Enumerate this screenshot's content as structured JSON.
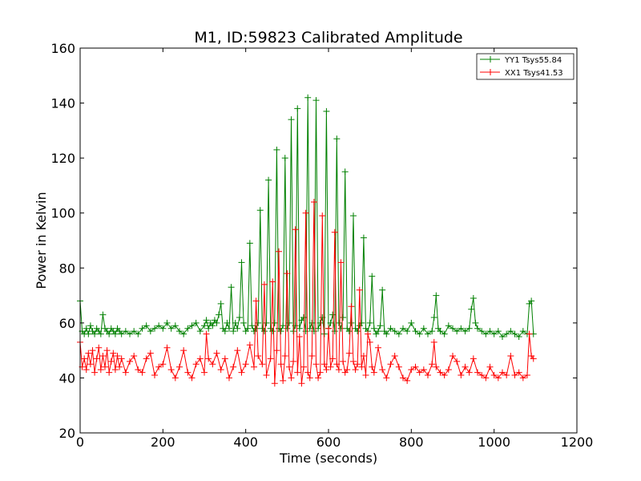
{
  "chart_data": {
    "type": "line",
    "title": "M1, ID:59823 Calibrated Amplitude",
    "xlabel": "Time (seconds)",
    "ylabel": "Power in Kelvin",
    "xlim": [
      0,
      1200
    ],
    "ylim": [
      20,
      160
    ],
    "xticks": [
      0,
      200,
      400,
      600,
      800,
      1000,
      1200
    ],
    "yticks": [
      20,
      40,
      60,
      80,
      100,
      120,
      140,
      160
    ],
    "grid": false,
    "legend_position": "top-right",
    "marker": "+",
    "series": [
      {
        "name": "YY1 Tsys55.84",
        "color": "#008000",
        "points": [
          [
            0,
            68
          ],
          [
            5,
            57
          ],
          [
            10,
            56
          ],
          [
            15,
            58
          ],
          [
            20,
            56
          ],
          [
            25,
            59
          ],
          [
            30,
            57
          ],
          [
            35,
            56
          ],
          [
            40,
            58
          ],
          [
            45,
            57
          ],
          [
            50,
            56
          ],
          [
            55,
            63
          ],
          [
            60,
            58
          ],
          [
            65,
            57
          ],
          [
            70,
            56
          ],
          [
            75,
            58
          ],
          [
            80,
            57
          ],
          [
            85,
            56
          ],
          [
            90,
            58
          ],
          [
            95,
            57
          ],
          [
            100,
            56
          ],
          [
            110,
            57
          ],
          [
            120,
            56
          ],
          [
            130,
            57
          ],
          [
            140,
            56
          ],
          [
            150,
            58
          ],
          [
            160,
            59
          ],
          [
            170,
            57
          ],
          [
            180,
            58
          ],
          [
            190,
            59
          ],
          [
            200,
            58
          ],
          [
            210,
            60
          ],
          [
            220,
            58
          ],
          [
            230,
            59
          ],
          [
            240,
            57
          ],
          [
            250,
            56
          ],
          [
            260,
            58
          ],
          [
            270,
            59
          ],
          [
            280,
            60
          ],
          [
            290,
            57
          ],
          [
            300,
            59
          ],
          [
            305,
            61
          ],
          [
            310,
            58
          ],
          [
            315,
            60
          ],
          [
            320,
            59
          ],
          [
            325,
            61
          ],
          [
            330,
            60
          ],
          [
            335,
            63
          ],
          [
            340,
            67
          ],
          [
            345,
            58
          ],
          [
            350,
            57
          ],
          [
            355,
            60
          ],
          [
            360,
            58
          ],
          [
            365,
            73
          ],
          [
            370,
            57
          ],
          [
            375,
            60
          ],
          [
            380,
            58
          ],
          [
            385,
            62
          ],
          [
            390,
            82
          ],
          [
            395,
            60
          ],
          [
            400,
            57
          ],
          [
            405,
            58
          ],
          [
            410,
            89
          ],
          [
            415,
            59
          ],
          [
            420,
            57
          ],
          [
            425,
            58
          ],
          [
            430,
            60
          ],
          [
            435,
            101
          ],
          [
            440,
            58
          ],
          [
            445,
            57
          ],
          [
            450,
            60
          ],
          [
            455,
            112
          ],
          [
            460,
            58
          ],
          [
            465,
            57
          ],
          [
            470,
            60
          ],
          [
            475,
            123
          ],
          [
            480,
            58
          ],
          [
            485,
            57
          ],
          [
            490,
            59
          ],
          [
            495,
            120
          ],
          [
            500,
            58
          ],
          [
            505,
            60
          ],
          [
            510,
            134
          ],
          [
            515,
            57
          ],
          [
            520,
            59
          ],
          [
            525,
            138
          ],
          [
            530,
            58
          ],
          [
            535,
            61
          ],
          [
            540,
            62
          ],
          [
            545,
            57
          ],
          [
            550,
            142
          ],
          [
            555,
            58
          ],
          [
            560,
            60
          ],
          [
            565,
            57
          ],
          [
            570,
            141
          ],
          [
            575,
            58
          ],
          [
            580,
            60
          ],
          [
            585,
            62
          ],
          [
            590,
            56
          ],
          [
            595,
            137
          ],
          [
            600,
            58
          ],
          [
            605,
            60
          ],
          [
            610,
            63
          ],
          [
            615,
            57
          ],
          [
            620,
            127
          ],
          [
            625,
            60
          ],
          [
            630,
            58
          ],
          [
            635,
            62
          ],
          [
            640,
            115
          ],
          [
            645,
            58
          ],
          [
            650,
            57
          ],
          [
            655,
            60
          ],
          [
            660,
            99
          ],
          [
            665,
            58
          ],
          [
            670,
            57
          ],
          [
            675,
            59
          ],
          [
            680,
            60
          ],
          [
            685,
            91
          ],
          [
            690,
            58
          ],
          [
            695,
            57
          ],
          [
            700,
            60
          ],
          [
            705,
            77
          ],
          [
            710,
            58
          ],
          [
            715,
            56
          ],
          [
            720,
            57
          ],
          [
            725,
            59
          ],
          [
            730,
            72
          ],
          [
            735,
            57
          ],
          [
            740,
            56
          ],
          [
            750,
            58
          ],
          [
            760,
            57
          ],
          [
            770,
            56
          ],
          [
            780,
            58
          ],
          [
            790,
            57
          ],
          [
            800,
            60
          ],
          [
            810,
            57
          ],
          [
            820,
            56
          ],
          [
            830,
            58
          ],
          [
            840,
            56
          ],
          [
            850,
            57
          ],
          [
            855,
            62
          ],
          [
            860,
            70
          ],
          [
            865,
            58
          ],
          [
            870,
            57
          ],
          [
            880,
            56
          ],
          [
            890,
            59
          ],
          [
            900,
            58
          ],
          [
            910,
            57
          ],
          [
            920,
            58
          ],
          [
            930,
            57
          ],
          [
            940,
            58
          ],
          [
            945,
            65
          ],
          [
            950,
            69
          ],
          [
            955,
            60
          ],
          [
            960,
            58
          ],
          [
            970,
            57
          ],
          [
            980,
            56
          ],
          [
            990,
            57
          ],
          [
            1000,
            56
          ],
          [
            1010,
            57
          ],
          [
            1020,
            55
          ],
          [
            1030,
            56
          ],
          [
            1040,
            57
          ],
          [
            1050,
            56
          ],
          [
            1060,
            55
          ],
          [
            1070,
            57
          ],
          [
            1080,
            56
          ],
          [
            1085,
            67
          ],
          [
            1090,
            68
          ],
          [
            1095,
            56
          ]
        ]
      },
      {
        "name": "XX1 Tsys41.53",
        "color": "#ff0000",
        "points": [
          [
            0,
            53
          ],
          [
            5,
            44
          ],
          [
            10,
            47
          ],
          [
            15,
            43
          ],
          [
            20,
            49
          ],
          [
            25,
            45
          ],
          [
            30,
            50
          ],
          [
            35,
            42
          ],
          [
            40,
            47
          ],
          [
            45,
            51
          ],
          [
            50,
            43
          ],
          [
            55,
            48
          ],
          [
            60,
            44
          ],
          [
            65,
            50
          ],
          [
            70,
            42
          ],
          [
            75,
            46
          ],
          [
            80,
            49
          ],
          [
            85,
            43
          ],
          [
            90,
            48
          ],
          [
            95,
            44
          ],
          [
            100,
            47
          ],
          [
            110,
            42
          ],
          [
            120,
            46
          ],
          [
            130,
            48
          ],
          [
            140,
            43
          ],
          [
            150,
            42
          ],
          [
            160,
            47
          ],
          [
            170,
            49
          ],
          [
            180,
            41
          ],
          [
            190,
            44
          ],
          [
            200,
            45
          ],
          [
            210,
            51
          ],
          [
            220,
            43
          ],
          [
            230,
            40
          ],
          [
            240,
            44
          ],
          [
            250,
            50
          ],
          [
            260,
            42
          ],
          [
            270,
            40
          ],
          [
            280,
            45
          ],
          [
            290,
            47
          ],
          [
            300,
            42
          ],
          [
            305,
            56
          ],
          [
            310,
            47
          ],
          [
            320,
            45
          ],
          [
            330,
            49
          ],
          [
            340,
            43
          ],
          [
            350,
            47
          ],
          [
            360,
            40
          ],
          [
            370,
            44
          ],
          [
            380,
            50
          ],
          [
            390,
            42
          ],
          [
            400,
            45
          ],
          [
            410,
            52
          ],
          [
            420,
            44
          ],
          [
            425,
            68
          ],
          [
            430,
            48
          ],
          [
            440,
            45
          ],
          [
            445,
            74
          ],
          [
            450,
            41
          ],
          [
            460,
            47
          ],
          [
            465,
            75
          ],
          [
            470,
            38
          ],
          [
            475,
            50
          ],
          [
            480,
            86
          ],
          [
            485,
            45
          ],
          [
            490,
            39
          ],
          [
            495,
            48
          ],
          [
            500,
            78
          ],
          [
            505,
            44
          ],
          [
            510,
            40
          ],
          [
            515,
            46
          ],
          [
            520,
            94
          ],
          [
            525,
            42
          ],
          [
            530,
            55
          ],
          [
            535,
            38
          ],
          [
            540,
            44
          ],
          [
            545,
            100
          ],
          [
            550,
            42
          ],
          [
            555,
            40
          ],
          [
            560,
            48
          ],
          [
            565,
            104
          ],
          [
            570,
            45
          ],
          [
            575,
            40
          ],
          [
            580,
            42
          ],
          [
            585,
            99
          ],
          [
            590,
            45
          ],
          [
            595,
            43
          ],
          [
            600,
            58
          ],
          [
            605,
            44
          ],
          [
            610,
            47
          ],
          [
            615,
            93
          ],
          [
            620,
            45
          ],
          [
            625,
            43
          ],
          [
            630,
            82
          ],
          [
            635,
            46
          ],
          [
            640,
            42
          ],
          [
            645,
            43
          ],
          [
            650,
            49
          ],
          [
            655,
            66
          ],
          [
            660,
            46
          ],
          [
            665,
            43
          ],
          [
            670,
            45
          ],
          [
            675,
            72
          ],
          [
            680,
            44
          ],
          [
            685,
            48
          ],
          [
            690,
            41
          ],
          [
            695,
            56
          ],
          [
            700,
            53
          ],
          [
            705,
            44
          ],
          [
            710,
            42
          ],
          [
            720,
            51
          ],
          [
            730,
            43
          ],
          [
            740,
            40
          ],
          [
            750,
            45
          ],
          [
            760,
            48
          ],
          [
            770,
            44
          ],
          [
            780,
            40
          ],
          [
            790,
            39
          ],
          [
            800,
            43
          ],
          [
            810,
            44
          ],
          [
            820,
            42
          ],
          [
            830,
            43
          ],
          [
            840,
            41
          ],
          [
            850,
            45
          ],
          [
            855,
            53
          ],
          [
            860,
            44
          ],
          [
            870,
            42
          ],
          [
            880,
            41
          ],
          [
            890,
            43
          ],
          [
            900,
            48
          ],
          [
            910,
            46
          ],
          [
            920,
            41
          ],
          [
            930,
            44
          ],
          [
            940,
            42
          ],
          [
            950,
            47
          ],
          [
            960,
            42
          ],
          [
            970,
            41
          ],
          [
            980,
            40
          ],
          [
            990,
            44
          ],
          [
            1000,
            41
          ],
          [
            1010,
            40
          ],
          [
            1020,
            42
          ],
          [
            1030,
            41
          ],
          [
            1040,
            48
          ],
          [
            1050,
            41
          ],
          [
            1060,
            42
          ],
          [
            1070,
            40
          ],
          [
            1080,
            41
          ],
          [
            1085,
            56
          ],
          [
            1090,
            48
          ],
          [
            1095,
            47
          ]
        ]
      }
    ]
  }
}
